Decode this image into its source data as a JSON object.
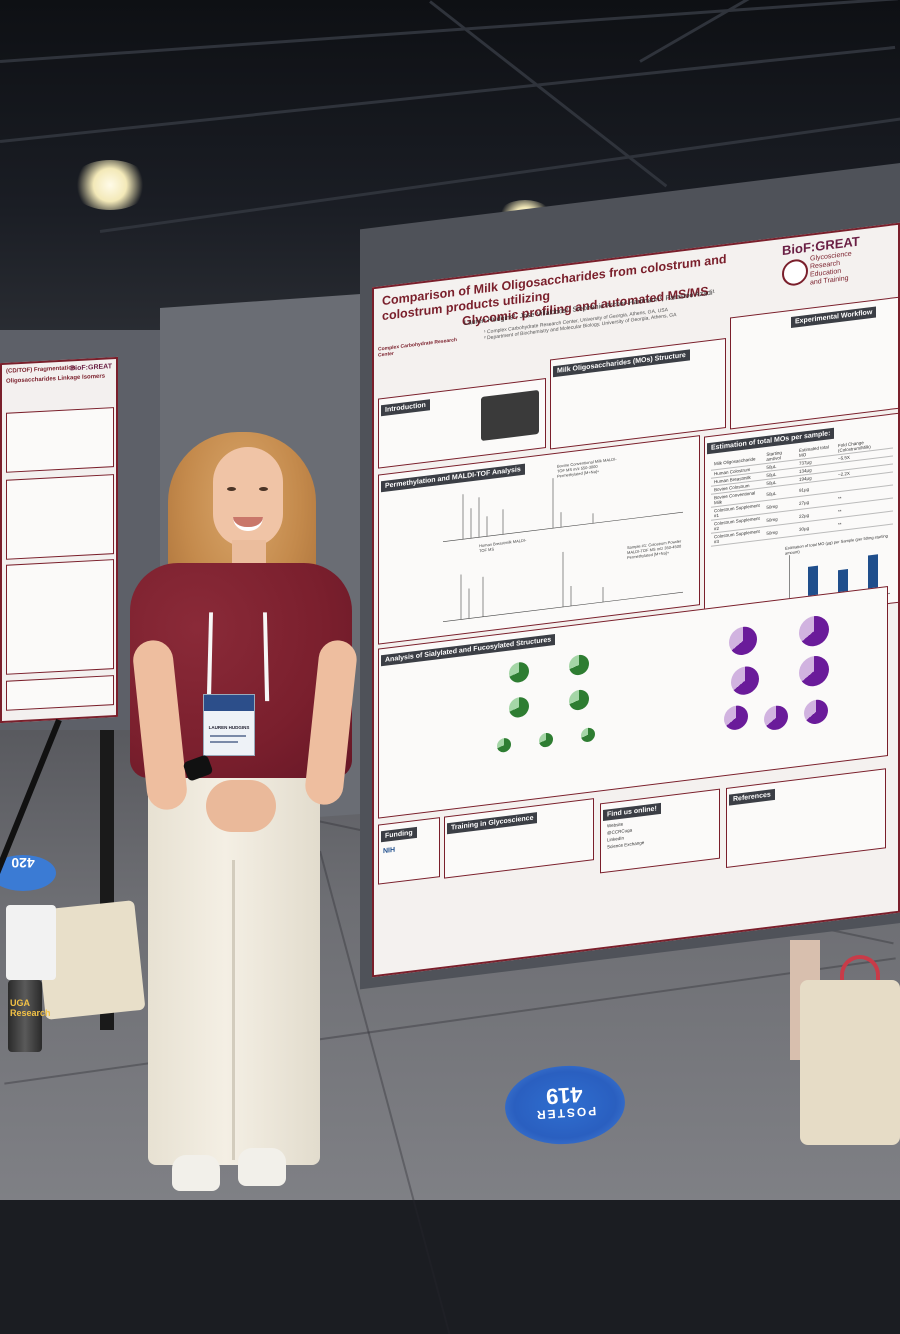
{
  "scene": {
    "description_label": "Conference poster session photo"
  },
  "poster": {
    "title_line1": "Comparison of Milk Oligosaccharides from colostrum and colostrum products utilizing",
    "title_line2": "Glycomic profiling and automated MS/MS",
    "authors": "Lauren Hudgins¹, Jose Villalobos¹, Stephanie Archer-Hartmann¹, Parastoo Azadi¹",
    "affiliation1": "¹ Complex Carbohydrate Research Center, University of Georgia, Athens, GA, USA",
    "affiliation2": "² Department of Biochemistry and Molecular Biology, University of Georgia, Athens, GA",
    "logo_name": "BioF:GREAT",
    "logo_sub1": "Glycoscience",
    "logo_sub2": "Research",
    "logo_sub3": "Education",
    "logo_sub4": "and Training",
    "ccrc_logo": "Complex Carbohydrate Research Center",
    "sections": {
      "intro": "Introduction",
      "structure": "Milk Oligosaccharides (MOs) Structure",
      "workflow": "Experimental Workflow",
      "permethylation": "Permethylation and MALDI-TOF Analysis",
      "estimation": "Estimation of total MOs per sample:",
      "sialylated": "Analysis of Sialylated and Fucosylated Structures",
      "funding": "Funding",
      "training": "Training in Glycoscience",
      "find_us": "Find us online!",
      "references": "References"
    },
    "funding_logo": "NIH",
    "website_label": "Website",
    "linkedin_label": "LinkedIn",
    "science_exchange": "Science Exchange",
    "handle": "@CCRCuga",
    "table": {
      "headers": [
        "Milk Oligosaccharide",
        "Starting amt/vol",
        "Estimated total MO",
        "Fold Change (Colostrum/Milk)"
      ],
      "rows": [
        [
          "Human Colostrum",
          "50µL",
          "737µg",
          "~5.5X"
        ],
        [
          "Human Breastmilk",
          "50µL",
          "134µg",
          ""
        ],
        [
          "Bovine Colostrum",
          "50µL",
          "194µg",
          "~2.2X"
        ],
        [
          "Bovine Conventional Milk",
          "50µL",
          "91µg",
          ""
        ],
        [
          "Colostrum Supplement #1",
          "50mg",
          "27µg",
          "**"
        ],
        [
          "Colostrum Supplement #2",
          "50mg",
          "22µg",
          "**"
        ],
        [
          "Colostrum Supplement #3",
          "50mg",
          "30µg",
          "**"
        ]
      ]
    },
    "bar_chart_title": "Estimation of total MO (µg) per Sample (per 50mg starting amount)",
    "bar_values": [
      27,
      22,
      30
    ],
    "spectrum_label1": "Bovine Conventional Milk MALDI-TOF MS m/z 550-3000 Permethylated [M+Na]+",
    "spectrum_label2": "Human Breastmilk MALDI-TOF MS",
    "spectrum_label3": "Sample #1: Colostrum Powder MALDI-TOF MS m/z 350-4500 Permethylated [M+Na]+"
  },
  "left_poster": {
    "title": "(CD/TOF) Fragmentation",
    "subtitle": "Oligosaccharides Linkage Isomers",
    "logo": "BioF:GREAT"
  },
  "badge": {
    "name": "LAUREN HUDGINS"
  },
  "floor_sticker": {
    "line1": "POSTER",
    "line2": "419"
  },
  "floor_sticker_left": "420",
  "can_label": "UGA Research"
}
